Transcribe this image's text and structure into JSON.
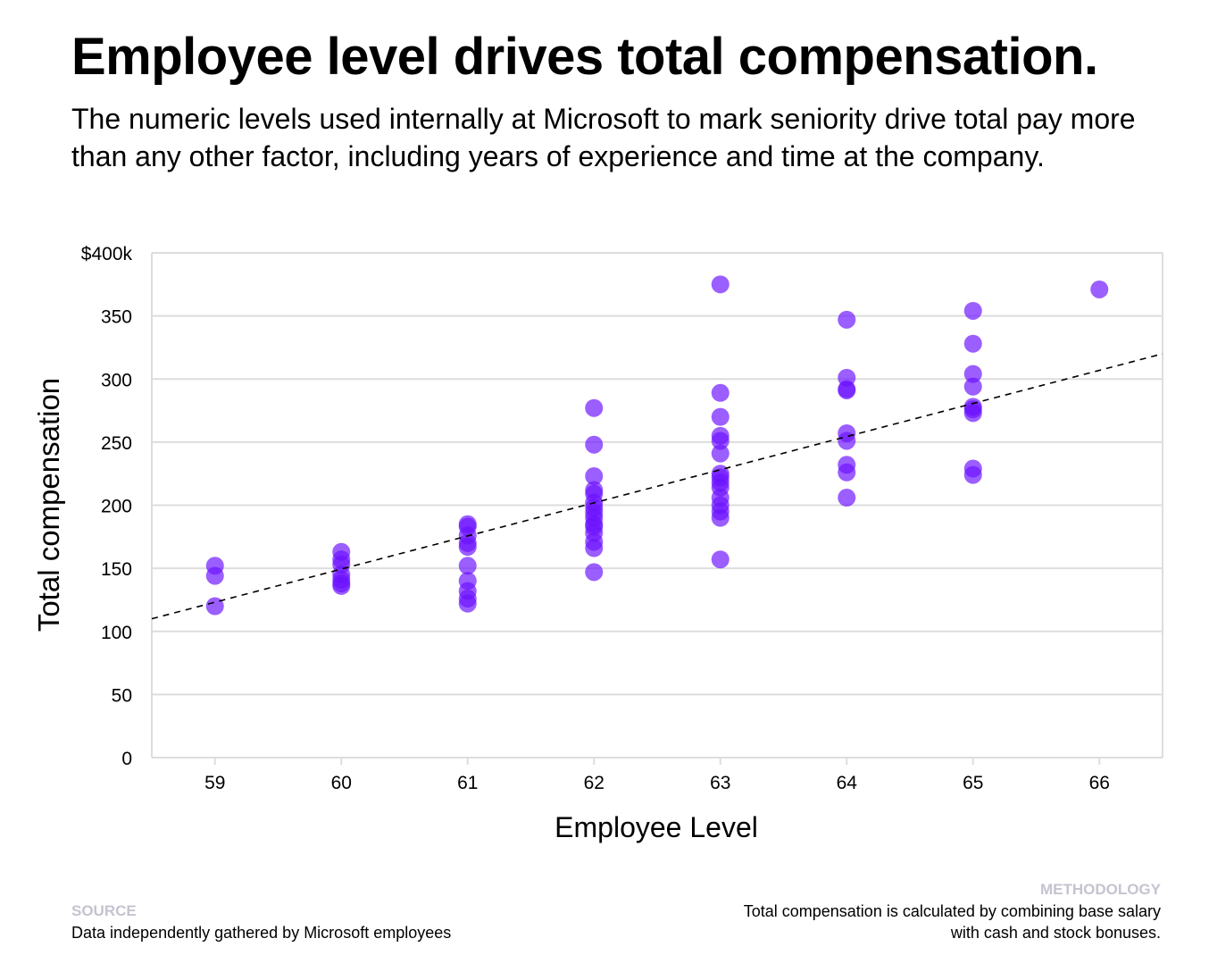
{
  "title": "Employee level drives total compensation.",
  "subtitle": "The numeric levels used internally at Microsoft to mark seniority drive total pay more than any other factor, including years of experience and time at the company.",
  "footer": {
    "source_label": "SOURCE",
    "source_text": "Data independently gathered by Microsoft employees",
    "methodology_label": "METHODOLOGY",
    "methodology_text": "Total compensation is calculated by combining base salary with cash and stock bonuses."
  },
  "colors": {
    "dot": "#6b12ff",
    "trend": "#000000",
    "grid": "#dddddd"
  },
  "chart_data": {
    "type": "scatter",
    "xlabel": "Employee Level",
    "ylabel": "Total compensation",
    "xlim": [
      58.5,
      66.5
    ],
    "ylim": [
      0,
      400
    ],
    "x_ticks": [
      59,
      60,
      61,
      62,
      63,
      64,
      65,
      66
    ],
    "y_ticks": [
      0,
      50,
      100,
      150,
      200,
      250,
      300,
      350,
      400
    ],
    "y_tick_labels": [
      "0",
      "50",
      "100",
      "150",
      "200",
      "250",
      "300",
      "350",
      "$400k"
    ],
    "grid": true,
    "points": {
      "59": [
        152,
        144,
        120
      ],
      "60": [
        163,
        157,
        153,
        145,
        141,
        138,
        136
      ],
      "61": [
        185,
        183,
        176,
        170,
        167,
        152,
        140,
        132,
        126,
        122
      ],
      "62": [
        277,
        248,
        223,
        212,
        209,
        202,
        198,
        194,
        190,
        185,
        183,
        178,
        171,
        166,
        147
      ],
      "63": [
        375,
        289,
        270,
        255,
        251,
        241,
        225,
        222,
        218,
        214,
        206,
        200,
        195,
        190,
        157
      ],
      "64": [
        347,
        301,
        292,
        291,
        257,
        251,
        232,
        226,
        206
      ],
      "65": [
        354,
        328,
        304,
        294,
        278,
        276,
        273,
        229,
        224
      ],
      "66": [
        371
      ]
    },
    "trendline": {
      "style": "dashed",
      "x": [
        58.5,
        66.5
      ],
      "y": [
        110,
        320
      ]
    }
  }
}
